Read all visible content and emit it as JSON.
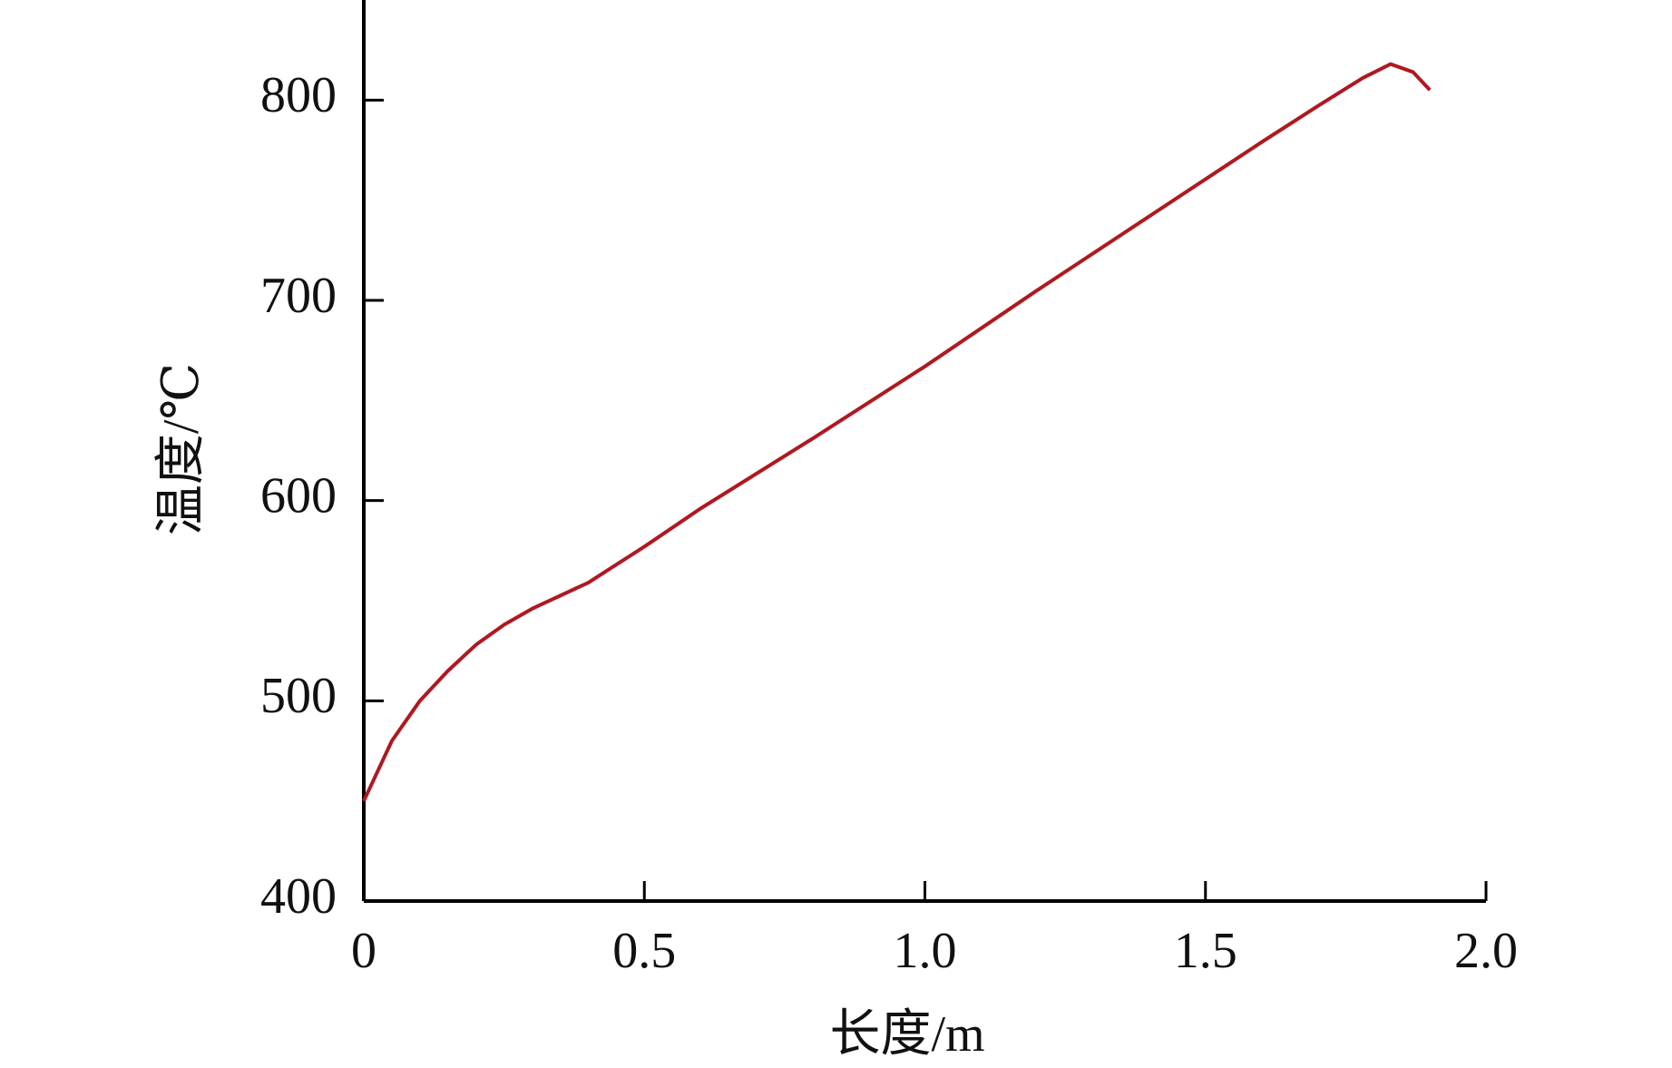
{
  "chart_data": {
    "type": "line",
    "x_label": "长度/m",
    "y_label": "温度/℃",
    "x": [
      0,
      0.05,
      0.1,
      0.15,
      0.2,
      0.25,
      0.3,
      0.4,
      0.5,
      0.6,
      0.8,
      1.0,
      1.2,
      1.4,
      1.6,
      1.7,
      1.78,
      1.83,
      1.87,
      1.9
    ],
    "series": [
      {
        "color": "#b01820",
        "values": [
          450,
          480,
          500,
          515,
          528,
          538,
          546,
          559,
          577,
          596,
          631,
          667,
          705,
          742,
          779,
          797,
          811,
          818,
          814,
          805
        ]
      }
    ],
    "xlim": [
      0,
      2.0
    ],
    "ylim": [
      400,
      850
    ],
    "xticks": [
      0,
      0.5,
      {
        "value": 1.0,
        "label": "1.0"
      },
      1.5,
      {
        "value": 2.0,
        "label": "2.0"
      }
    ],
    "yticks": [
      400,
      500,
      600,
      700,
      800
    ]
  }
}
